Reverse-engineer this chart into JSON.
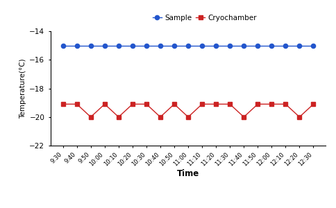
{
  "time_labels": [
    "9:30",
    "9:40",
    "9:50",
    "10:00",
    "10:10",
    "10:20",
    "10:30",
    "10:40",
    "10:50",
    "11:00",
    "11:10",
    "11:20",
    "11:30",
    "11:40",
    "11:50",
    "12:00",
    "12:10",
    "12:20",
    "12:30"
  ],
  "sample_values": [
    -15.0,
    -15.0,
    -15.0,
    -15.0,
    -15.0,
    -15.0,
    -15.0,
    -15.0,
    -15.0,
    -15.0,
    -15.0,
    -15.0,
    -15.0,
    -15.0,
    -15.0,
    -15.0,
    -15.0,
    -15.0,
    -15.0
  ],
  "cryo_values": [
    -19.1,
    -19.1,
    -20.0,
    -19.1,
    -20.0,
    -19.1,
    -19.1,
    -20.0,
    -19.1,
    -20.0,
    -19.1,
    -19.1,
    -19.1,
    -20.0,
    -19.1,
    -19.1,
    -19.1,
    -20.0,
    -19.1
  ],
  "sample_color": "#2255cc",
  "cryo_color": "#cc2222",
  "ylim": [
    -22,
    -14
  ],
  "yticks": [
    -22,
    -20,
    -18,
    -16,
    -14
  ],
  "ylabel": "Temperature(°C)",
  "xlabel": "Time",
  "legend_labels": [
    "Sample",
    "Cryochamber"
  ],
  "background_color": "#ffffff"
}
